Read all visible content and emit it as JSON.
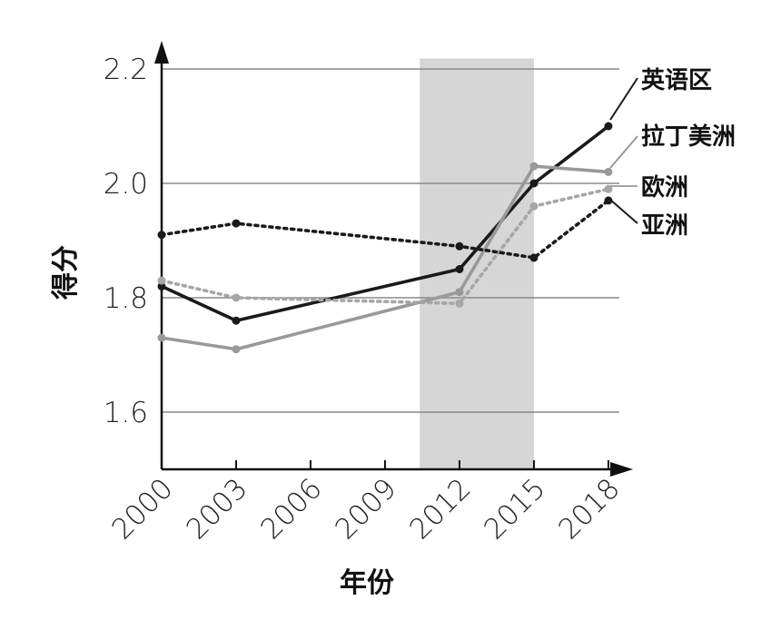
{
  "chart_data": {
    "type": "line",
    "xlabel": "年份",
    "ylabel": "得分",
    "x": [
      2000,
      2003,
      2006,
      2009,
      2012,
      2015,
      2018
    ],
    "ylim": [
      1.5,
      2.22
    ],
    "y_ticks": [
      "1.6",
      "1.8",
      "2.0",
      "2.2"
    ],
    "x_ticks": [
      "2000",
      "2003",
      "2006",
      "2009",
      "2012",
      "2015",
      "2018"
    ],
    "highlight_band": [
      2010.4,
      2015
    ],
    "grid": "horizontal",
    "legend": "right, labels with leader lines",
    "series": [
      {
        "name": "英语区",
        "color": "#1a1a1a",
        "style": "solid",
        "points": [
          [
            2000,
            1.82
          ],
          [
            2003,
            1.76
          ],
          [
            2012,
            1.85
          ],
          [
            2015,
            2.0
          ],
          [
            2018,
            2.1
          ]
        ]
      },
      {
        "name": "拉丁美洲",
        "color": "#999999",
        "style": "solid",
        "points": [
          [
            2000,
            1.73
          ],
          [
            2003,
            1.71
          ],
          [
            2012,
            1.81
          ],
          [
            2015,
            2.03
          ],
          [
            2018,
            2.02
          ]
        ]
      },
      {
        "name": "欧洲",
        "color": "#a6a6a6",
        "style": "dotted",
        "points": [
          [
            2000,
            1.83
          ],
          [
            2003,
            1.8
          ],
          [
            2012,
            1.79
          ],
          [
            2015,
            1.96
          ],
          [
            2018,
            1.99
          ]
        ]
      },
      {
        "name": "亚洲",
        "color": "#1a1a1a",
        "style": "dotted",
        "points": [
          [
            2000,
            1.91
          ],
          [
            2003,
            1.93
          ],
          [
            2012,
            1.89
          ],
          [
            2015,
            1.87
          ],
          [
            2018,
            1.97
          ]
        ]
      }
    ]
  }
}
